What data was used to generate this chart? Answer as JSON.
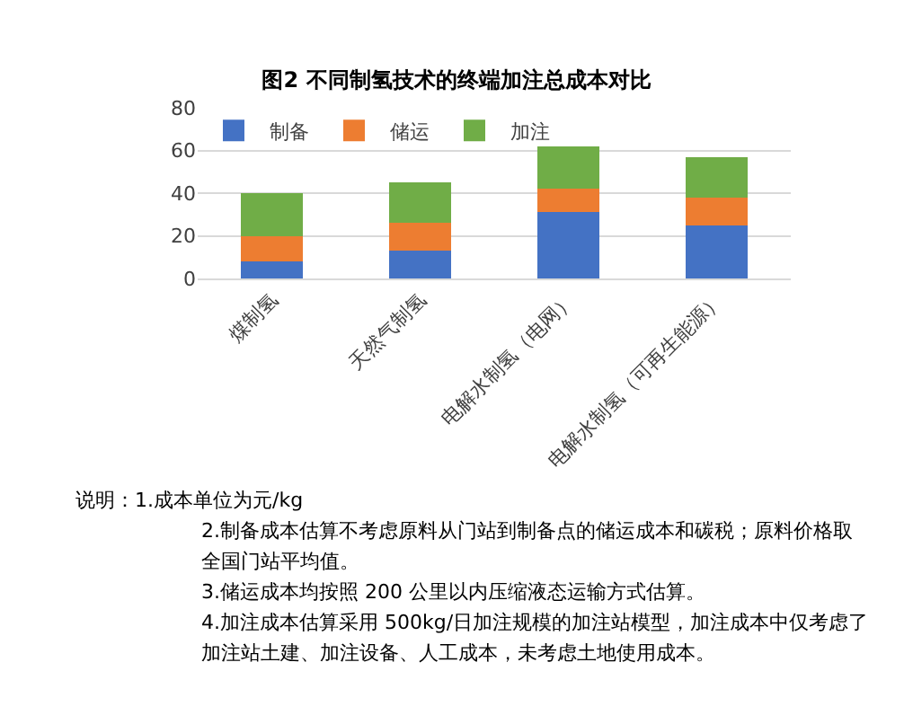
{
  "chart_data": {
    "type": "bar",
    "title": "图2 不同制氢技术的终端加注总成本对比",
    "categories": [
      "煤制氢",
      "天然气制氢",
      "电解水制氢（电网）",
      "电解水制氢（可再生能源）"
    ],
    "stacked": true,
    "series": [
      {
        "name": "制备",
        "color": "#4472c4",
        "values": [
          8,
          13,
          31,
          25
        ]
      },
      {
        "name": "储运",
        "color": "#ed7d31",
        "values": [
          12,
          13,
          11,
          13
        ]
      },
      {
        "name": "加注",
        "color": "#70ad47",
        "values": [
          20,
          19,
          20,
          19
        ]
      }
    ],
    "ylim": [
      0,
      80
    ],
    "yticks": [
      0,
      20,
      40,
      60,
      80
    ],
    "grid": "y",
    "legend": "top left",
    "annotations": [
      "说明：1.成本单位为元/kg",
      "2.制备成本估算不考虑原料从门站到制备点的储运成本和碳税；原料价格取",
      "全国门站平均值。",
      "3.储运成本均按照 200 公里以内压缩液态运输方式估算。",
      "4.加注成本估算采用 500kg/日加注规模的加注站模型，加注成本中仅考虑了",
      "加注站土建、加注设备、人工成本，未考虑土地使用成本。"
    ]
  }
}
